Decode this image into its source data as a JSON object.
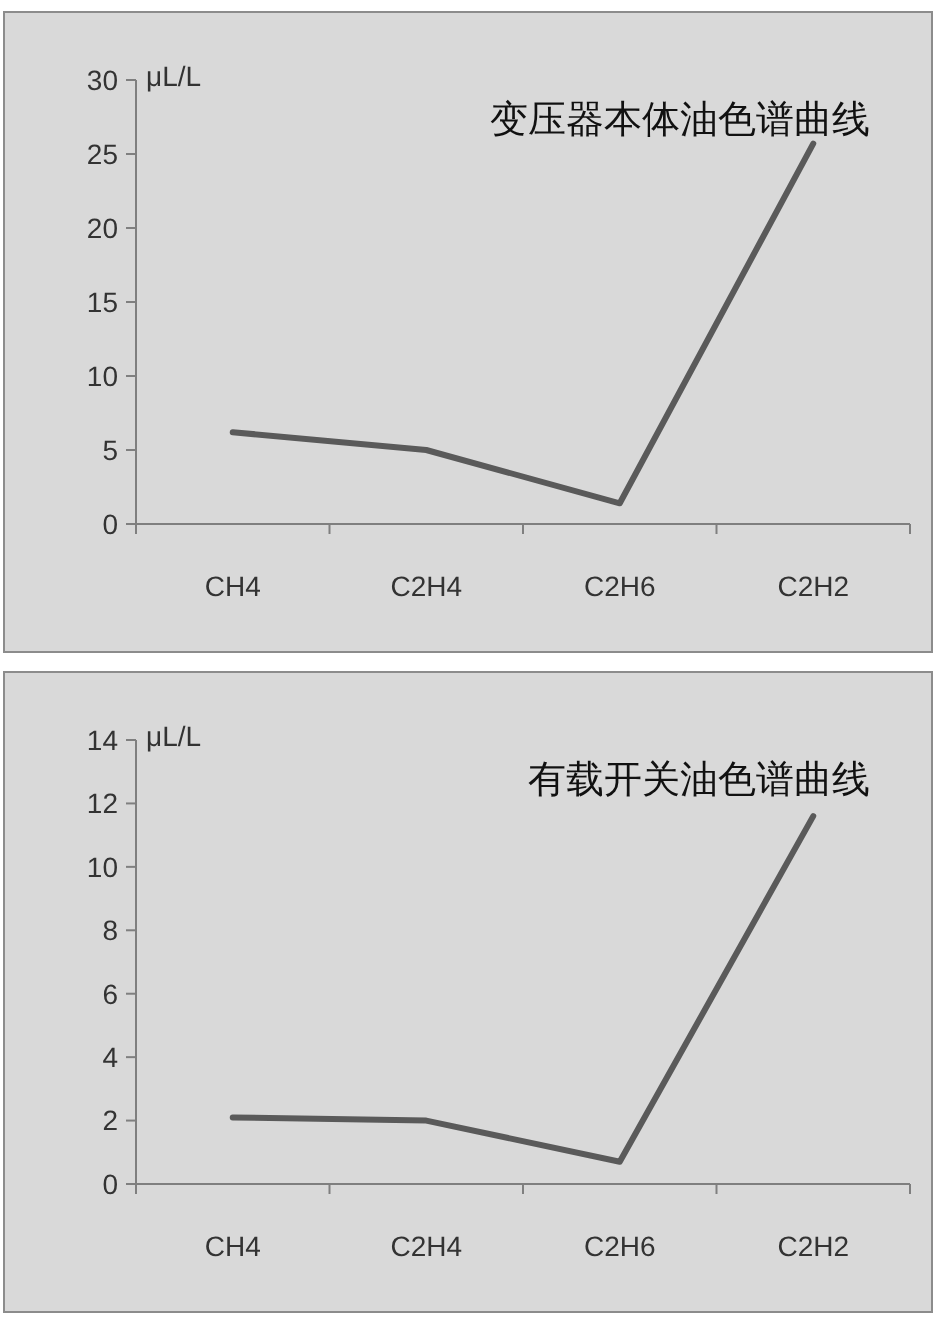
{
  "chart_data": [
    {
      "type": "line",
      "title": "变压器本体油色谱曲线",
      "ylabel": "μL/L",
      "categories": [
        "CH4",
        "C2H4",
        "C2H6",
        "C2H2"
      ],
      "series": [
        {
          "color": "#5a5a5a",
          "values": [
            6.2,
            5.0,
            1.4,
            25.7
          ]
        }
      ],
      "ylim": [
        0,
        30
      ],
      "yticks": [
        0,
        5,
        10,
        15,
        20,
        25,
        30
      ],
      "grid": false,
      "marker": "none",
      "line_style": "solid"
    },
    {
      "type": "line",
      "title": "有载开关油色谱曲线",
      "ylabel": "μL/L",
      "categories": [
        "CH4",
        "C2H4",
        "C2H6",
        "C2H2"
      ],
      "series": [
        {
          "color": "#5a5a5a",
          "values": [
            2.1,
            2.0,
            0.7,
            11.6
          ]
        }
      ],
      "ylim": [
        0,
        14
      ],
      "yticks": [
        0,
        2,
        4,
        6,
        8,
        10,
        12,
        14
      ],
      "grid": false,
      "marker": "none",
      "line_style": "solid"
    }
  ]
}
